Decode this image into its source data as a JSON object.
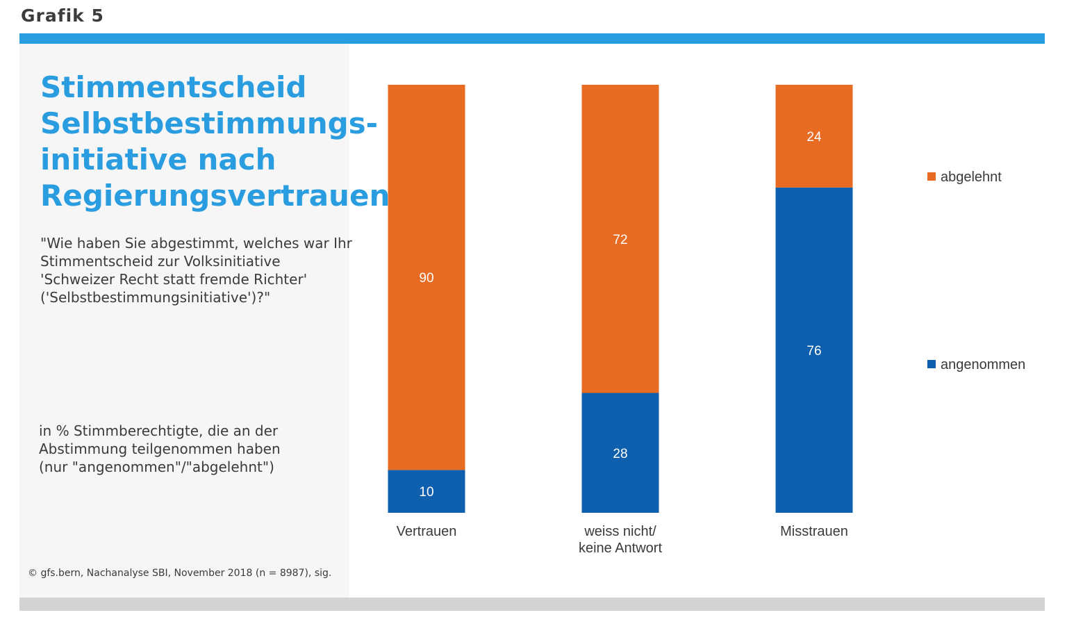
{
  "header": {
    "grafik_label": "Grafik 5"
  },
  "panel": {
    "title_lines": [
      "Stimmentscheid",
      "Selbstbestimmungs-",
      "initiative nach",
      "Regierungsvertrauen"
    ],
    "question_lines": [
      "\"Wie haben Sie abgestimmt, welches war Ihr",
      "Stimmentscheid zur Volksinitiative",
      "'Schweizer Recht statt fremde Richter'",
      "('Selbstbestimmungsinitiative')?\""
    ],
    "unit_lines": [
      "in % Stimmberechtigte, die an der",
      "Abstimmung teilgenommen haben",
      "(nur \"angenommen\"/\"abgelehnt\")"
    ],
    "source": "© gfs.bern, Nachanalyse SBI, November 2018 (n = 8987), sig."
  },
  "colors": {
    "accent": "#2a9de0",
    "angenommen": "#0e5fae",
    "abgelehnt": "#e76b23"
  },
  "chart_data": {
    "type": "bar",
    "stacked": true,
    "categories": [
      [
        "Vertrauen"
      ],
      [
        "weiss nicht/",
        "keine Antwort"
      ],
      [
        "Misstrauen"
      ]
    ],
    "series": [
      {
        "name": "angenommen",
        "values": [
          10,
          28,
          76
        ]
      },
      {
        "name": "abgelehnt",
        "values": [
          90,
          72,
          24
        ]
      }
    ],
    "ylim": [
      0,
      100
    ],
    "legend_position": "right",
    "legend_order": [
      "abgelehnt",
      "angenommen"
    ]
  }
}
